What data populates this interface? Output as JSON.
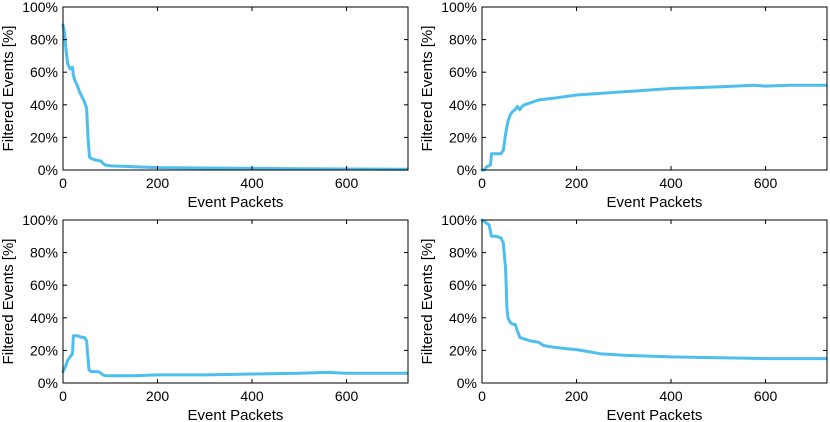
{
  "chart_data": [
    {
      "type": "line",
      "xlabel": "Event Packets",
      "ylabel": "Filtered Events [%]",
      "xlim": [
        0,
        730
      ],
      "ylim": [
        0,
        100
      ],
      "xticks": [
        0,
        200,
        400,
        600
      ],
      "xtick_labels": [
        "0",
        "200",
        "400",
        "600"
      ],
      "yticks": [
        0,
        20,
        40,
        60,
        80,
        100
      ],
      "ytick_labels": [
        "0%",
        "20%",
        "40%",
        "60%",
        "80%",
        "100%"
      ],
      "color": "#4DBEEE",
      "grid": false,
      "x": [
        0,
        3,
        6,
        10,
        15,
        20,
        22,
        25,
        30,
        35,
        40,
        45,
        50,
        53,
        56,
        60,
        65,
        70,
        80,
        85,
        90,
        100,
        150,
        200,
        300,
        400,
        500,
        600,
        700,
        728
      ],
      "y": [
        89,
        85,
        75,
        65,
        62,
        63,
        58,
        55,
        52,
        48,
        45,
        42,
        38,
        20,
        8,
        7,
        6.5,
        6,
        5.5,
        4,
        3,
        2.5,
        2,
        1.5,
        1.2,
        1,
        0.8,
        0.6,
        0.5,
        0.5
      ]
    },
    {
      "type": "line",
      "xlabel": "Event Packets",
      "ylabel": "Filtered Events [%]",
      "xlim": [
        0,
        730
      ],
      "ylim": [
        0,
        100
      ],
      "xticks": [
        0,
        200,
        400,
        600
      ],
      "xtick_labels": [
        "0",
        "200",
        "400",
        "600"
      ],
      "yticks": [
        0,
        20,
        40,
        60,
        80,
        100
      ],
      "ytick_labels": [
        "0%",
        "20%",
        "40%",
        "60%",
        "80%",
        "100%"
      ],
      "color": "#4DBEEE",
      "grid": false,
      "x": [
        0,
        5,
        10,
        18,
        20,
        25,
        40,
        45,
        50,
        55,
        60,
        65,
        70,
        75,
        80,
        85,
        90,
        100,
        120,
        150,
        200,
        250,
        300,
        400,
        500,
        575,
        600,
        650,
        700,
        728
      ],
      "y": [
        0,
        0,
        2,
        3,
        10,
        10,
        10,
        12,
        22,
        30,
        34,
        36,
        37,
        39,
        37,
        39,
        40,
        41,
        43,
        44,
        46,
        47,
        48,
        50,
        51,
        52,
        51.5,
        52,
        52,
        52
      ]
    },
    {
      "type": "line",
      "xlabel": "Event Packets",
      "ylabel": "Filtered Events [%]",
      "xlim": [
        0,
        730
      ],
      "ylim": [
        0,
        100
      ],
      "xticks": [
        0,
        200,
        400,
        600
      ],
      "xtick_labels": [
        "0",
        "200",
        "400",
        "600"
      ],
      "yticks": [
        0,
        20,
        40,
        60,
        80,
        100
      ],
      "ytick_labels": [
        "0%",
        "20%",
        "40%",
        "60%",
        "80%",
        "100%"
      ],
      "color": "#4DBEEE",
      "grid": false,
      "x": [
        0,
        5,
        10,
        15,
        20,
        22,
        25,
        30,
        40,
        45,
        50,
        52,
        55,
        60,
        70,
        75,
        80,
        85,
        90,
        100,
        150,
        200,
        300,
        400,
        500,
        560,
        600,
        700,
        728
      ],
      "y": [
        7,
        10,
        14,
        16,
        18,
        29,
        29,
        29,
        28,
        28,
        26,
        18,
        8,
        7,
        7,
        7,
        6,
        5,
        4.5,
        4.5,
        4.5,
        5,
        5,
        5.5,
        6,
        6.5,
        6,
        6,
        6
      ]
    },
    {
      "type": "line",
      "xlabel": "Event Packets",
      "ylabel": "Filtered Events [%]",
      "xlim": [
        0,
        730
      ],
      "ylim": [
        0,
        100
      ],
      "xticks": [
        0,
        200,
        400,
        600
      ],
      "xtick_labels": [
        "0",
        "200",
        "400",
        "600"
      ],
      "yticks": [
        0,
        20,
        40,
        60,
        80,
        100
      ],
      "ytick_labels": [
        "0%",
        "20%",
        "40%",
        "60%",
        "80%",
        "100%"
      ],
      "color": "#4DBEEE",
      "grid": false,
      "x": [
        0,
        5,
        10,
        15,
        20,
        25,
        30,
        40,
        45,
        50,
        53,
        55,
        60,
        65,
        70,
        75,
        80,
        90,
        100,
        120,
        130,
        150,
        180,
        200,
        250,
        300,
        400,
        500,
        600,
        700,
        728
      ],
      "y": [
        100,
        99,
        98,
        97,
        90,
        90,
        90,
        89,
        86,
        70,
        45,
        40,
        37,
        36,
        36,
        32,
        28,
        27,
        26,
        25,
        23,
        22,
        21,
        20.5,
        18,
        17,
        16,
        15.5,
        15,
        15,
        15
      ]
    }
  ]
}
